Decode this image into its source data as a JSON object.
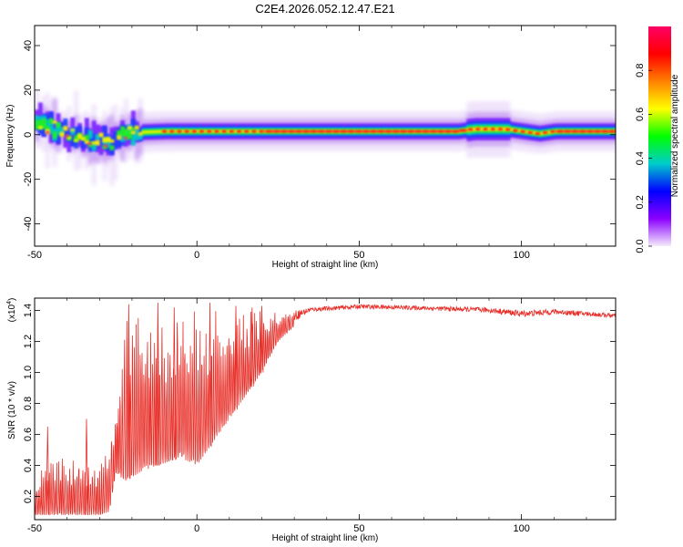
{
  "title": "C2E4.2026.052.12.47.E21",
  "chart_data": [
    {
      "type": "heatmap",
      "name": "spectrogram",
      "xlabel": "Height of straight line (km)",
      "ylabel": "Frequency (Hz)",
      "xlim": [
        -50,
        129
      ],
      "ylim": [
        -50,
        49
      ],
      "xticks": [
        -50,
        0,
        50,
        100
      ],
      "yticks": [
        -40,
        -20,
        0,
        20,
        40
      ],
      "colorbar": {
        "label": "Normalized spectral amplitude",
        "range": [
          0,
          1
        ],
        "ticks": [
          0.0,
          0.2,
          0.4,
          0.6,
          0.8
        ],
        "tick_labels": [
          "0.0",
          "0.2",
          "0.4",
          "0.6",
          "0.8"
        ],
        "colormap": [
          "#f5ecfc",
          "#8b00ff",
          "#0000ff",
          "#00cccc",
          "#00ff00",
          "#ffff00",
          "#ff8000",
          "#ff0000",
          "#ff0066"
        ]
      },
      "centerline_hz": [
        [
          -50,
          7
        ],
        [
          -45,
          3
        ],
        [
          -40,
          0
        ],
        [
          -35,
          -2
        ],
        [
          -30,
          -3
        ],
        [
          -27,
          -3
        ],
        [
          -24,
          0
        ],
        [
          -20,
          1
        ],
        [
          -10,
          1.5
        ],
        [
          0,
          1.5
        ],
        [
          10,
          1.5
        ],
        [
          20,
          1.5
        ],
        [
          40,
          1.5
        ],
        [
          60,
          1.5
        ],
        [
          80,
          1.5
        ],
        [
          85,
          2.5
        ],
        [
          95,
          2.5
        ],
        [
          100,
          1.5
        ],
        [
          105,
          0.5
        ],
        [
          110,
          1.5
        ],
        [
          129,
          1.5
        ]
      ]
    },
    {
      "type": "line",
      "name": "snr",
      "xlabel": "Height of straight line (km)",
      "ylabel": "SNR (10 * v/v)",
      "multiplier_label": "(x10",
      "multiplier_exponent": "4",
      "xlim": [
        -50,
        129
      ],
      "ylim": [
        0.05,
        1.48
      ],
      "xticks": [
        -50,
        0,
        50,
        100
      ],
      "yticks": [
        0.2,
        0.4,
        0.6,
        0.8,
        1.0,
        1.2,
        1.4
      ],
      "ytick_labels": [
        "0.2",
        "0.4",
        "0.6",
        "0.8",
        "1.0",
        "1.2",
        "1.4"
      ],
      "color": "#e8302a",
      "envelope": [
        [
          -50,
          0.3,
          0.08
        ],
        [
          -45,
          0.5,
          0.08
        ],
        [
          -40,
          0.45,
          0.08
        ],
        [
          -35,
          0.45,
          0.08
        ],
        [
          -30,
          0.4,
          0.08
        ],
        [
          -27,
          0.55,
          0.1
        ],
        [
          -25,
          0.85,
          0.35
        ],
        [
          -22,
          1.4,
          0.3
        ],
        [
          -18,
          1.4,
          0.35
        ],
        [
          -12,
          1.4,
          0.4
        ],
        [
          -5,
          1.4,
          0.45
        ],
        [
          0,
          1.4,
          0.4
        ],
        [
          5,
          1.42,
          0.55
        ],
        [
          10,
          1.4,
          0.7
        ],
        [
          15,
          1.4,
          0.85
        ],
        [
          20,
          1.4,
          1.0
        ],
        [
          25,
          1.4,
          1.2
        ],
        [
          30,
          1.4,
          1.3
        ],
        [
          35,
          1.42,
          1.38
        ],
        [
          50,
          1.44,
          1.4
        ],
        [
          70,
          1.43,
          1.39
        ],
        [
          90,
          1.42,
          1.37
        ],
        [
          100,
          1.4,
          1.34
        ],
        [
          110,
          1.41,
          1.36
        ],
        [
          129,
          1.38,
          1.34
        ]
      ],
      "marked_peaks": [
        [
          -46,
          0.65
        ],
        [
          -34,
          0.7
        ],
        [
          -21,
          1.44
        ],
        [
          -12,
          1.45
        ],
        [
          -7,
          1.42
        ],
        [
          4,
          1.45
        ],
        [
          12,
          1.43
        ],
        [
          17,
          1.42
        ],
        [
          20,
          1.43
        ]
      ]
    }
  ]
}
